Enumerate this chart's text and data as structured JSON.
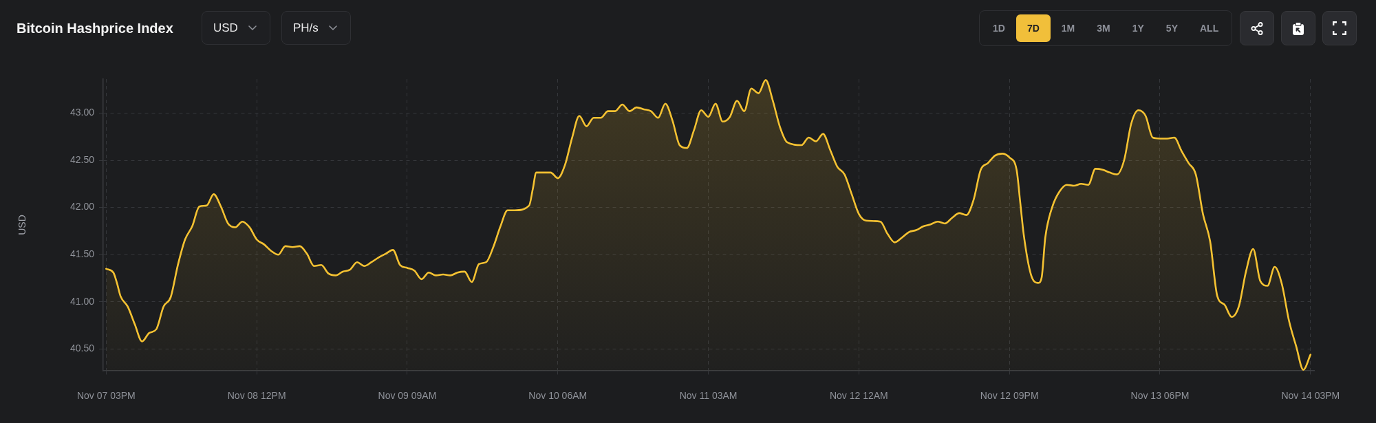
{
  "chart_data": {
    "type": "area",
    "title": "Bitcoin Hashprice Index",
    "ylabel": "USD",
    "annotations": [
      "USD",
      "PH/s",
      "1D",
      "7D",
      "1M",
      "3M",
      "1Y",
      "5Y",
      "ALL"
    ],
    "x": [
      "--11-07T15:00",
      "--11-07T16:00",
      "--11-07T16:30",
      "--11-07T17:00",
      "--11-07T18:00",
      "--11-07T19:00",
      "--11-07T20:00",
      "--11-07T21:00",
      "--11-07T22:00",
      "--11-07T23:00",
      "--11-08T00:00",
      "--11-08T01:00",
      "--11-08T02:00",
      "--11-08T03:00",
      "--11-08T04:00",
      "--11-08T05:00",
      "--11-08T06:00",
      "--11-08T07:00",
      "--11-08T08:00",
      "--11-08T09:00",
      "--11-08T10:00",
      "--11-08T11:00",
      "--11-08T12:00",
      "--11-08T13:00",
      "--11-08T14:00",
      "--11-08T15:00",
      "--11-08T16:00",
      "--11-08T17:00",
      "--11-08T18:00",
      "--11-08T19:00",
      "--11-08T20:00",
      "--11-08T21:00",
      "--11-08T22:00",
      "--11-08T23:00",
      "--11-09T00:00",
      "--11-09T01:00",
      "--11-09T02:00",
      "--11-09T03:00",
      "--11-09T04:00",
      "--11-09T05:00",
      "--11-09T06:00",
      "--11-09T07:00",
      "--11-09T08:00",
      "--11-09T09:00",
      "--11-09T10:00",
      "--11-09T11:00",
      "--11-09T12:00",
      "--11-09T13:00",
      "--11-09T14:00",
      "--11-09T15:00",
      "--11-09T16:00",
      "--11-09T17:00",
      "--11-09T18:00",
      "--11-09T19:00",
      "--11-09T20:00",
      "--11-09T21:00",
      "--11-09T22:00",
      "--11-09T23:00",
      "--11-10T00:00",
      "--11-10T02:00",
      "--11-10T02:30",
      "--11-10T03:00",
      "--11-10T05:00",
      "--11-10T06:00",
      "--11-10T07:00",
      "--11-10T08:00",
      "--11-10T09:00",
      "--11-10T10:00",
      "--11-10T11:00",
      "--11-10T12:00",
      "--11-10T13:00",
      "--11-10T14:00",
      "--11-10T15:00",
      "--11-10T16:00",
      "--11-10T17:00",
      "--11-10T18:00",
      "--11-10T19:00",
      "--11-10T20:00",
      "--11-10T21:00",
      "--11-10T22:00",
      "--11-10T23:00",
      "--11-11T00:00",
      "--11-11T01:00",
      "--11-11T02:00",
      "--11-11T03:00",
      "--11-11T04:00",
      "--11-11T05:00",
      "--11-11T06:00",
      "--11-11T07:00",
      "--11-11T08:00",
      "--11-11T09:00",
      "--11-11T10:00",
      "--11-11T11:00",
      "--11-11T12:00",
      "--11-11T13:00",
      "--11-11T14:00",
      "--11-11T16:00",
      "--11-11T17:00",
      "--11-11T18:00",
      "--11-11T19:00",
      "--11-11T20:00",
      "--11-11T21:00",
      "--11-11T22:00",
      "--11-11T23:00",
      "--11-12T00:00",
      "--11-12T01:00",
      "--11-12T03:00",
      "--11-12T04:00",
      "--11-12T05:00",
      "--11-12T06:00",
      "--11-12T07:00",
      "--11-12T08:00",
      "--11-12T09:00",
      "--11-12T10:00",
      "--11-12T11:00",
      "--11-12T12:00",
      "--11-12T13:00",
      "--11-12T14:00",
      "--11-12T15:00",
      "--11-12T16:00",
      "--11-12T17:00",
      "--11-12T18:00",
      "--11-12T19:00",
      "--11-12T20:00",
      "--11-12T21:00",
      "--11-12T22:00",
      "--11-12T22:30",
      "--11-12T23:00",
      "--11-13T00:00",
      "--11-13T01:00",
      "--11-13T01:30",
      "--11-13T02:00",
      "--11-13T03:00",
      "--11-13T04:00",
      "--11-13T05:00",
      "--11-13T06:00",
      "--11-13T07:00",
      "--11-13T08:00",
      "--11-13T09:00",
      "--11-13T10:00",
      "--11-13T11:00",
      "--11-13T12:00",
      "--11-13T13:00",
      "--11-13T14:00",
      "--11-13T15:00",
      "--11-13T16:00",
      "--11-13T17:00",
      "--11-13T18:00",
      "--11-13T19:00",
      "--11-13T20:00",
      "--11-13T21:00",
      "--11-13T22:00",
      "--11-13T23:00",
      "--11-14T00:00",
      "--11-14T01:00",
      "--11-14T02:00",
      "--11-14T03:00",
      "--11-14T04:00",
      "--11-14T05:00",
      "--11-14T06:00",
      "--11-14T07:00",
      "--11-14T08:00",
      "--11-14T09:00",
      "--11-14T10:00",
      "--11-14T11:00",
      "--11-14T12:00",
      "--11-14T13:00",
      "--11-14T14:00",
      "--11-14T15:00"
    ],
    "series": [
      {
        "color": "#f5c232",
        "values": [
          41.35,
          41.31,
          41.2,
          41.06,
          40.95,
          40.76,
          40.58,
          40.67,
          40.71,
          40.95,
          41.05,
          41.39,
          41.66,
          41.8,
          42.01,
          42.02,
          42.14,
          42.01,
          41.83,
          41.79,
          41.85,
          41.79,
          41.66,
          41.61,
          41.54,
          41.5,
          41.59,
          41.58,
          41.59,
          41.51,
          41.38,
          41.39,
          41.3,
          41.28,
          41.32,
          41.34,
          41.42,
          41.38,
          41.42,
          41.47,
          41.51,
          41.55,
          41.39,
          41.36,
          41.33,
          41.24,
          41.31,
          41.28,
          41.29,
          41.28,
          41.31,
          41.32,
          41.21,
          41.4,
          41.42,
          41.58,
          41.8,
          41.97,
          41.97,
          42.02,
          42.19,
          42.37,
          42.37,
          42.31,
          42.45,
          42.74,
          42.97,
          42.86,
          42.95,
          42.95,
          43.02,
          43.02,
          43.09,
          43.02,
          43.06,
          43.04,
          43.02,
          42.95,
          43.1,
          42.92,
          42.66,
          42.63,
          42.82,
          43.03,
          42.96,
          43.1,
          42.91,
          42.96,
          43.13,
          43.02,
          43.26,
          43.21,
          43.35,
          43.13,
          42.85,
          42.69,
          42.66,
          42.74,
          42.7,
          42.78,
          42.61,
          42.43,
          42.35,
          42.14,
          41.93,
          41.86,
          41.85,
          41.72,
          41.63,
          41.68,
          41.74,
          41.76,
          41.8,
          41.82,
          41.85,
          41.83,
          41.89,
          41.94,
          41.92,
          42.08,
          42.4,
          42.47,
          42.55,
          42.57,
          42.53,
          42.4,
          42.06,
          41.71,
          41.29,
          41.2,
          41.26,
          41.68,
          42.01,
          42.17,
          42.24,
          42.23,
          42.25,
          42.24,
          42.41,
          42.4,
          42.37,
          42.35,
          42.5,
          42.89,
          43.03,
          42.97,
          42.74,
          42.73,
          42.73,
          42.74,
          42.6,
          42.47,
          42.35,
          41.93,
          41.64,
          41.06,
          40.97,
          40.84,
          40.95,
          41.32,
          41.56,
          41.22,
          41.17,
          41.37,
          41.19,
          40.8,
          40.53,
          40.28,
          40.44
        ]
      }
    ],
    "xlim": [
      "--11-07T14:35",
      "--11-14T15:30"
    ],
    "xticks": [
      {
        "value": "--11-07T15:00",
        "label": "Nov 07 03PM"
      },
      {
        "value": "--11-08T12:00",
        "label": "Nov 08 12PM"
      },
      {
        "value": "--11-09T09:00",
        "label": "Nov 09 09AM"
      },
      {
        "value": "--11-10T06:00",
        "label": "Nov 10 06AM"
      },
      {
        "value": "--11-11T03:00",
        "label": "Nov 11 03AM"
      },
      {
        "value": "--11-12T00:00",
        "label": "Nov 12 12AM"
      },
      {
        "value": "--11-12T21:00",
        "label": "Nov 12 09PM"
      },
      {
        "value": "--11-13T18:00",
        "label": "Nov 13 06PM"
      },
      {
        "value": "--11-14T15:00",
        "label": "Nov 14 03PM"
      }
    ],
    "ylim": [
      40.27,
      43.36
    ],
    "yticks": [
      {
        "value": 40.5,
        "label": "40.50"
      },
      {
        "value": 41,
        "label": "41.00"
      },
      {
        "value": 41.5,
        "label": "41.50"
      },
      {
        "value": 42,
        "label": "42.00"
      },
      {
        "value": 42.5,
        "label": "42.50"
      },
      {
        "value": 43,
        "label": "43.00"
      }
    ],
    "grid": true,
    "marker": "none"
  }
}
